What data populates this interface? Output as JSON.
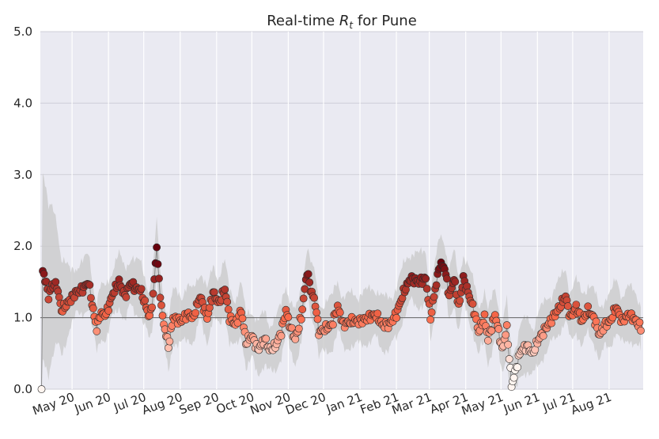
{
  "chart_data": {
    "type": "scatter",
    "title_prefix": "Real-time ",
    "title_symbol": "R",
    "title_subscript": "t",
    "title_suffix": " for Pune",
    "xlabel": "",
    "ylabel": "",
    "ylim": [
      0,
      5
    ],
    "xlim": [
      "2020-04-04",
      "2021-08-30"
    ],
    "grid": true,
    "reference_line": 1.0,
    "y_ticks": [
      {
        "value": 0,
        "label": "0.0"
      },
      {
        "value": 1,
        "label": "1.0"
      },
      {
        "value": 2,
        "label": "2.0"
      },
      {
        "value": 3,
        "label": "3.0"
      },
      {
        "value": 4,
        "label": "4.0"
      },
      {
        "value": 5,
        "label": "5.0"
      }
    ],
    "x_ticks": [
      {
        "date": "2020-05-01",
        "label": "May 20"
      },
      {
        "date": "2020-06-01",
        "label": "Jun 20"
      },
      {
        "date": "2020-07-01",
        "label": "Jul 20"
      },
      {
        "date": "2020-08-01",
        "label": "Aug 20"
      },
      {
        "date": "2020-09-01",
        "label": "Sep 20"
      },
      {
        "date": "2020-10-01",
        "label": "Oct 20"
      },
      {
        "date": "2020-11-01",
        "label": "Nov 20"
      },
      {
        "date": "2020-12-01",
        "label": "Dec 20"
      },
      {
        "date": "2021-01-01",
        "label": "Jan 21"
      },
      {
        "date": "2021-02-01",
        "label": "Feb 21"
      },
      {
        "date": "2021-03-01",
        "label": "Mar 21"
      },
      {
        "date": "2021-04-01",
        "label": "Apr 21"
      },
      {
        "date": "2021-05-01",
        "label": "May 21"
      },
      {
        "date": "2021-06-01",
        "label": "Jun 21"
      },
      {
        "date": "2021-07-01",
        "label": "Jul 21"
      },
      {
        "date": "2021-08-01",
        "label": "Aug 21"
      }
    ],
    "keyframes": [
      [
        "2020-04-05",
        0.0
      ],
      [
        "2020-04-06",
        1.65
      ],
      [
        "2020-04-08",
        1.55
      ],
      [
        "2020-04-11",
        1.3
      ],
      [
        "2020-04-14",
        1.45
      ],
      [
        "2020-04-18",
        1.45
      ],
      [
        "2020-04-22",
        1.1
      ],
      [
        "2020-04-27",
        1.2
      ],
      [
        "2020-05-04",
        1.35
      ],
      [
        "2020-05-10",
        1.4
      ],
      [
        "2020-05-15",
        1.5
      ],
      [
        "2020-05-19",
        1.1
      ],
      [
        "2020-05-22",
        0.85
      ],
      [
        "2020-05-25",
        1.05
      ],
      [
        "2020-05-30",
        1.05
      ],
      [
        "2020-06-05",
        1.35
      ],
      [
        "2020-06-10",
        1.5
      ],
      [
        "2020-06-15",
        1.3
      ],
      [
        "2020-06-20",
        1.5
      ],
      [
        "2020-06-24",
        1.4
      ],
      [
        "2020-06-28",
        1.4
      ],
      [
        "2020-07-02",
        1.2
      ],
      [
        "2020-07-06",
        1.0
      ],
      [
        "2020-07-09",
        1.3
      ],
      [
        "2020-07-12",
        2.0
      ],
      [
        "2020-07-14",
        1.5
      ],
      [
        "2020-07-17",
        1.0
      ],
      [
        "2020-07-22",
        0.6
      ],
      [
        "2020-07-26",
        1.0
      ],
      [
        "2020-08-02",
        0.95
      ],
      [
        "2020-08-07",
        1.05
      ],
      [
        "2020-08-12",
        1.0
      ],
      [
        "2020-08-18",
        1.3
      ],
      [
        "2020-08-24",
        1.0
      ],
      [
        "2020-08-29",
        1.35
      ],
      [
        "2020-09-03",
        1.2
      ],
      [
        "2020-09-08",
        1.4
      ],
      [
        "2020-09-12",
        1.0
      ],
      [
        "2020-09-17",
        0.9
      ],
      [
        "2020-09-22",
        1.1
      ],
      [
        "2020-09-26",
        0.65
      ],
      [
        "2020-10-01",
        0.75
      ],
      [
        "2020-10-06",
        0.55
      ],
      [
        "2020-10-12",
        0.7
      ],
      [
        "2020-10-16",
        0.55
      ],
      [
        "2020-10-21",
        0.6
      ],
      [
        "2020-10-26",
        0.8
      ],
      [
        "2020-10-30",
        1.1
      ],
      [
        "2020-11-03",
        0.85
      ],
      [
        "2020-11-07",
        0.7
      ],
      [
        "2020-11-12",
        1.0
      ],
      [
        "2020-11-17",
        1.65
      ],
      [
        "2020-11-20",
        1.4
      ],
      [
        "2020-11-24",
        1.2
      ],
      [
        "2020-11-27",
        0.8
      ],
      [
        "2020-12-03",
        0.85
      ],
      [
        "2020-12-08",
        0.9
      ],
      [
        "2020-12-13",
        1.15
      ],
      [
        "2020-12-18",
        0.9
      ],
      [
        "2020-12-24",
        0.95
      ],
      [
        "2021-01-01",
        0.95
      ],
      [
        "2021-01-08",
        1.0
      ],
      [
        "2021-01-14",
        1.05
      ],
      [
        "2021-01-20",
        0.9
      ],
      [
        "2021-01-26",
        0.9
      ],
      [
        "2021-02-01",
        1.05
      ],
      [
        "2021-02-07",
        1.35
      ],
      [
        "2021-02-13",
        1.55
      ],
      [
        "2021-02-20",
        1.5
      ],
      [
        "2021-02-26",
        1.55
      ],
      [
        "2021-03-02",
        1.0
      ],
      [
        "2021-03-06",
        1.4
      ],
      [
        "2021-03-10",
        1.75
      ],
      [
        "2021-03-14",
        1.7
      ],
      [
        "2021-03-18",
        1.3
      ],
      [
        "2021-03-22",
        1.55
      ],
      [
        "2021-03-26",
        1.15
      ],
      [
        "2021-03-30",
        1.55
      ],
      [
        "2021-04-04",
        1.3
      ],
      [
        "2021-04-08",
        1.1
      ],
      [
        "2021-04-12",
        0.8
      ],
      [
        "2021-04-17",
        1.0
      ],
      [
        "2021-04-20",
        0.7
      ],
      [
        "2021-04-26",
        1.05
      ],
      [
        "2021-05-02",
        0.55
      ],
      [
        "2021-05-06",
        0.85
      ],
      [
        "2021-05-10",
        0.05
      ],
      [
        "2021-05-14",
        0.3
      ],
      [
        "2021-05-18",
        0.55
      ],
      [
        "2021-05-23",
        0.6
      ],
      [
        "2021-05-28",
        0.5
      ],
      [
        "2021-06-02",
        0.7
      ],
      [
        "2021-06-08",
        0.85
      ],
      [
        "2021-06-14",
        1.0
      ],
      [
        "2021-06-20",
        1.15
      ],
      [
        "2021-06-25",
        1.3
      ],
      [
        "2021-06-29",
        1.0
      ],
      [
        "2021-07-04",
        1.15
      ],
      [
        "2021-07-09",
        0.95
      ],
      [
        "2021-07-14",
        1.1
      ],
      [
        "2021-07-19",
        1.0
      ],
      [
        "2021-07-24",
        0.75
      ],
      [
        "2021-07-28",
        0.9
      ],
      [
        "2021-08-02",
        0.95
      ],
      [
        "2021-08-07",
        1.15
      ],
      [
        "2021-08-12",
        0.95
      ],
      [
        "2021-08-18",
        1.05
      ],
      [
        "2021-08-24",
        0.95
      ],
      [
        "2021-08-28",
        0.85
      ]
    ]
  },
  "colors": {
    "background": "#eaeaf2",
    "grid": "#ffffff",
    "band": "#c8c8c8",
    "reference_line": "#666666",
    "trace_line": "#888888",
    "low": "#fff5f0",
    "mid": "#fb6a4a",
    "high": "#67000d"
  }
}
